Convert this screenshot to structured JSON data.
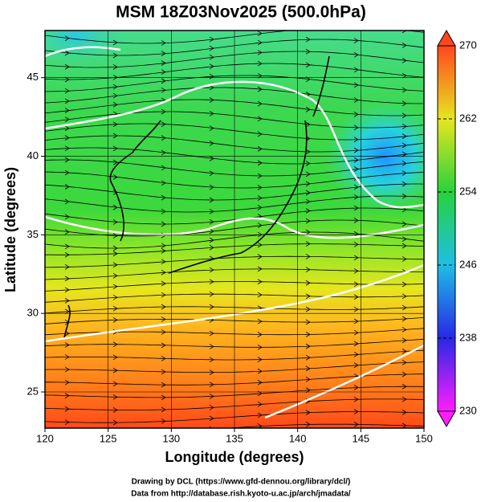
{
  "title": "MSM 18Z03Nov2025 (500.0hPa)",
  "x_axis": {
    "label": "Longitude (degrees)",
    "lim": [
      120,
      150
    ],
    "ticks": [
      120,
      125,
      130,
      135,
      140,
      145,
      150
    ]
  },
  "y_axis": {
    "label": "Latitude  (degrees)",
    "lim": [
      22.7,
      48.0
    ],
    "ticks": [
      25,
      30,
      35,
      40,
      45
    ]
  },
  "colorbar": {
    "lim": [
      230,
      270
    ],
    "ticks": [
      230,
      238,
      246,
      254,
      262,
      270
    ]
  },
  "credits": [
    "Drawing by DCL (https://www.gfd-dennou.org/library/dcl/)",
    "Data from http://database.rish.kyoto-u.ac.jp/arch/jmadata/"
  ]
}
